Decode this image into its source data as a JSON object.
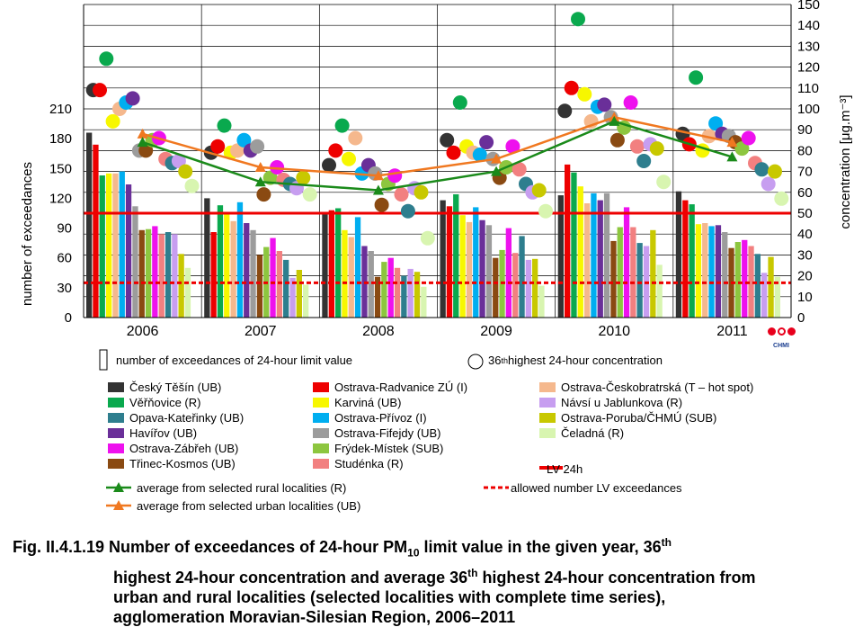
{
  "chart_data": {
    "type": "bar+scatter+line",
    "years": [
      "2006",
      "2007",
      "2008",
      "2009",
      "2010",
      "2011"
    ],
    "ylabel_left": "number of exceedances",
    "ylabel_right": "concentration [μg.m⁻³]",
    "left_ticks": [
      "0",
      "30",
      "60",
      "90",
      "120",
      "150",
      "180",
      "210"
    ],
    "right_ticks": [
      "0",
      "10",
      "20",
      "30",
      "40",
      "50",
      "60",
      "70",
      "80",
      "90",
      "100",
      "110",
      "120",
      "130",
      "140",
      "150"
    ],
    "ylim_left": [
      0,
      315
    ],
    "ylim_right": [
      0,
      150
    ],
    "legend_markers": {
      "bar": "number of exceedances of 24-hour limit value",
      "circle": "36th highest 24-hour concentration",
      "circle_sup": "th",
      "circle_num": "36",
      "circle_rest": " highest 24-hour concentration"
    },
    "stations": [
      {
        "name": "Český Těšín (UB)",
        "color": "#333333",
        "exceedances": [
          186,
          120,
          105,
          118,
          123,
          127
        ],
        "c36": [
          109,
          79,
          73,
          85,
          99,
          88
        ]
      },
      {
        "name": "Věřňovice (R)",
        "color": "#0aa94e",
        "exceedances": [
          143,
          113,
          110,
          124,
          146,
          114
        ],
        "c36": [
          124,
          92,
          92,
          103,
          143,
          115
        ]
      },
      {
        "name": "Opava-Kateřinky (UB)",
        "color": "#2e7e8e",
        "exceedances": [
          86,
          58,
          42,
          82,
          75,
          64
        ],
        "c36": [
          74,
          64,
          51,
          64,
          75,
          71
        ]
      },
      {
        "name": "Havířov (UB)",
        "color": "#6a2f99",
        "exceedances": [
          134,
          95,
          72,
          98,
          118,
          93
        ],
        "c36": [
          105,
          80,
          73,
          84,
          102,
          88
        ]
      },
      {
        "name": "Ostrava-Zábřeh (UB)",
        "color": "#ee11ee",
        "exceedances": [
          92,
          80,
          60,
          90,
          111,
          78
        ],
        "c36": [
          86,
          72,
          68,
          82,
          103,
          86
        ]
      },
      {
        "name": "Třinec-Kosmos (UB)",
        "color": "#8a4a12",
        "exceedances": [
          88,
          63,
          41,
          60,
          77,
          70
        ],
        "c36": [
          80,
          59,
          54,
          67,
          85,
          84
        ]
      },
      {
        "name": "Ostrava-Radvanice ZÚ (I)",
        "color": "#ee0000",
        "exceedances": [
          174,
          86,
          108,
          112,
          154,
          118
        ],
        "c36": [
          109,
          82,
          80,
          79,
          110,
          83
        ]
      },
      {
        "name": "Karviná (UB)",
        "color": "#f7f700",
        "exceedances": [
          145,
          104,
          88,
          103,
          132,
          94
        ],
        "c36": [
          94,
          79,
          76,
          82,
          107,
          80
        ]
      },
      {
        "name": "Ostrava-Přívoz (I)",
        "color": "#00aef0",
        "exceedances": [
          147,
          116,
          101,
          111,
          125,
          92
        ],
        "c36": [
          103,
          85,
          69,
          78,
          101,
          93
        ]
      },
      {
        "name": "Ostrava-Fifejdy (UB)",
        "color": "#9c9c9c",
        "exceedances": [
          112,
          88,
          67,
          93,
          125,
          86
        ],
        "c36": [
          80,
          82,
          69,
          76,
          96,
          87
        ]
      },
      {
        "name": "Frýdek-Místek (SUB)",
        "color": "#8dc63f",
        "exceedances": [
          89,
          71,
          56,
          68,
          91,
          76
        ],
        "c36": [
          85,
          67,
          64,
          72,
          91,
          81
        ]
      },
      {
        "name": "Studénka (R)",
        "color": "#f28080",
        "exceedances": [
          84,
          67,
          50,
          65,
          91,
          72
        ],
        "c36": [
          76,
          66,
          59,
          71,
          82,
          74
        ]
      },
      {
        "name": "Ostrava-Českobratrská (T – hot spot)",
        "color": "#f5b88d",
        "exceedances": [
          145,
          97,
          81,
          96,
          115,
          95
        ],
        "c36": [
          100,
          80,
          86,
          79,
          94,
          87
        ]
      },
      {
        "name": "Návsí u Jablunkova (R)",
        "color": "#c79ef0",
        "exceedances": [
          84,
          40,
          49,
          58,
          72,
          45
        ],
        "c36": [
          75,
          62,
          62,
          60,
          83,
          64
        ]
      },
      {
        "name": "Ostrava-Poruba/ČHMÚ (SUB)",
        "color": "#c8c800",
        "exceedances": [
          64,
          48,
          46,
          59,
          88,
          61
        ],
        "c36": [
          70,
          67,
          60,
          61,
          81,
          70
        ]
      },
      {
        "name": "Čeladná (R)",
        "color": "#d8f5b0",
        "exceedances": [
          50,
          33,
          31,
          32,
          53,
          41
        ],
        "c36": [
          63,
          59,
          38,
          51,
          65,
          57
        ]
      }
    ],
    "rural_avg": {
      "name": "average from selected rural localities (R)",
      "color": "#1a8a1a",
      "values": [
        84,
        65,
        61,
        70,
        94,
        77
      ]
    },
    "urban_avg": {
      "name": "average from selected urban localities  (UB)",
      "color": "#f07820",
      "values": [
        88,
        72,
        68,
        76,
        96,
        84
      ]
    },
    "lv24h": {
      "name": "LV 24h",
      "value": 50,
      "color": "#ee0000"
    },
    "allowed_exceedances": {
      "name": "allowed number LV exceedances",
      "value": 35,
      "color": "#ee0000"
    }
  },
  "caption": {
    "prefix": "Fig. II.4.1.19  Number of exceedances of 24-hour PM",
    "sub": "10",
    "part2": "  limit value in the given year, 36",
    "sup1": "th",
    "line2a": "highest 24-hour concentration and average 36",
    "sup2": "th",
    "line2b": " highest 24-hour concentration from",
    "line3": "urban and rural localities (selected localities with complete time series),",
    "line4": "agglomeration Moravian-Silesian Region, 2006–2011"
  },
  "logo_text": "CHMI",
  "colors": {
    "lv_line": "#ee0000",
    "grid": "#000000"
  }
}
